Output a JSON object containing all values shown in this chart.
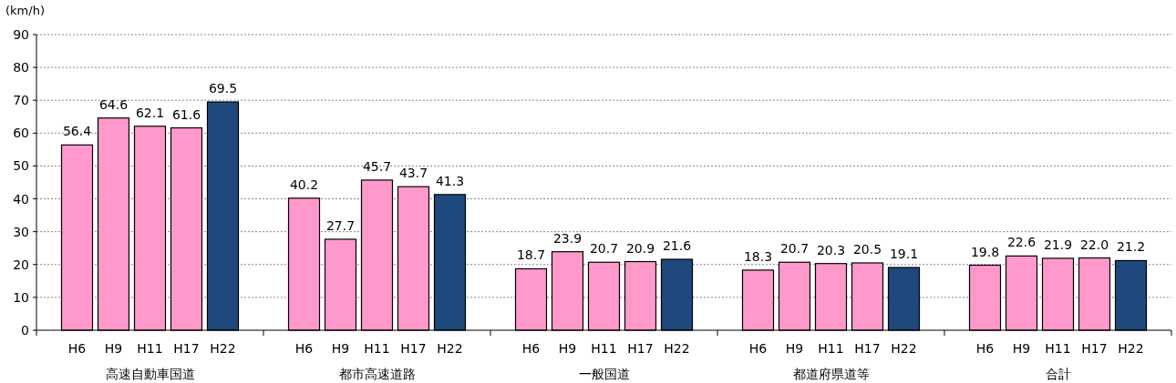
{
  "chart_data": {
    "type": "bar",
    "ylabel": "(km/h)",
    "categories": [
      "高速自動車国道",
      "都市高速道路",
      "一般国道",
      "都道府県道等",
      "合計"
    ],
    "series": [
      {
        "name": "H6",
        "color": "#ff99cc",
        "values": [
          56.4,
          40.2,
          18.7,
          18.3,
          19.8
        ]
      },
      {
        "name": "H9",
        "color": "#ff99cc",
        "values": [
          64.6,
          27.7,
          23.9,
          20.7,
          22.6
        ]
      },
      {
        "name": "H11",
        "color": "#ff99cc",
        "values": [
          62.1,
          45.7,
          20.7,
          20.3,
          21.9
        ]
      },
      {
        "name": "H17",
        "color": "#ff99cc",
        "values": [
          61.6,
          43.7,
          20.9,
          20.5,
          22.0
        ],
        "value_labels": [
          "61.6",
          "43.7",
          "20.9",
          "20.5",
          "22.0"
        ]
      },
      {
        "name": "H22",
        "color": "#1f497d",
        "values": [
          69.5,
          41.3,
          21.6,
          19.1,
          21.2
        ]
      }
    ],
    "ylim": [
      0,
      90
    ],
    "yticks": [
      0,
      10,
      20,
      30,
      40,
      50,
      60,
      70,
      80,
      90
    ],
    "grid": "y",
    "data_labels": true
  }
}
